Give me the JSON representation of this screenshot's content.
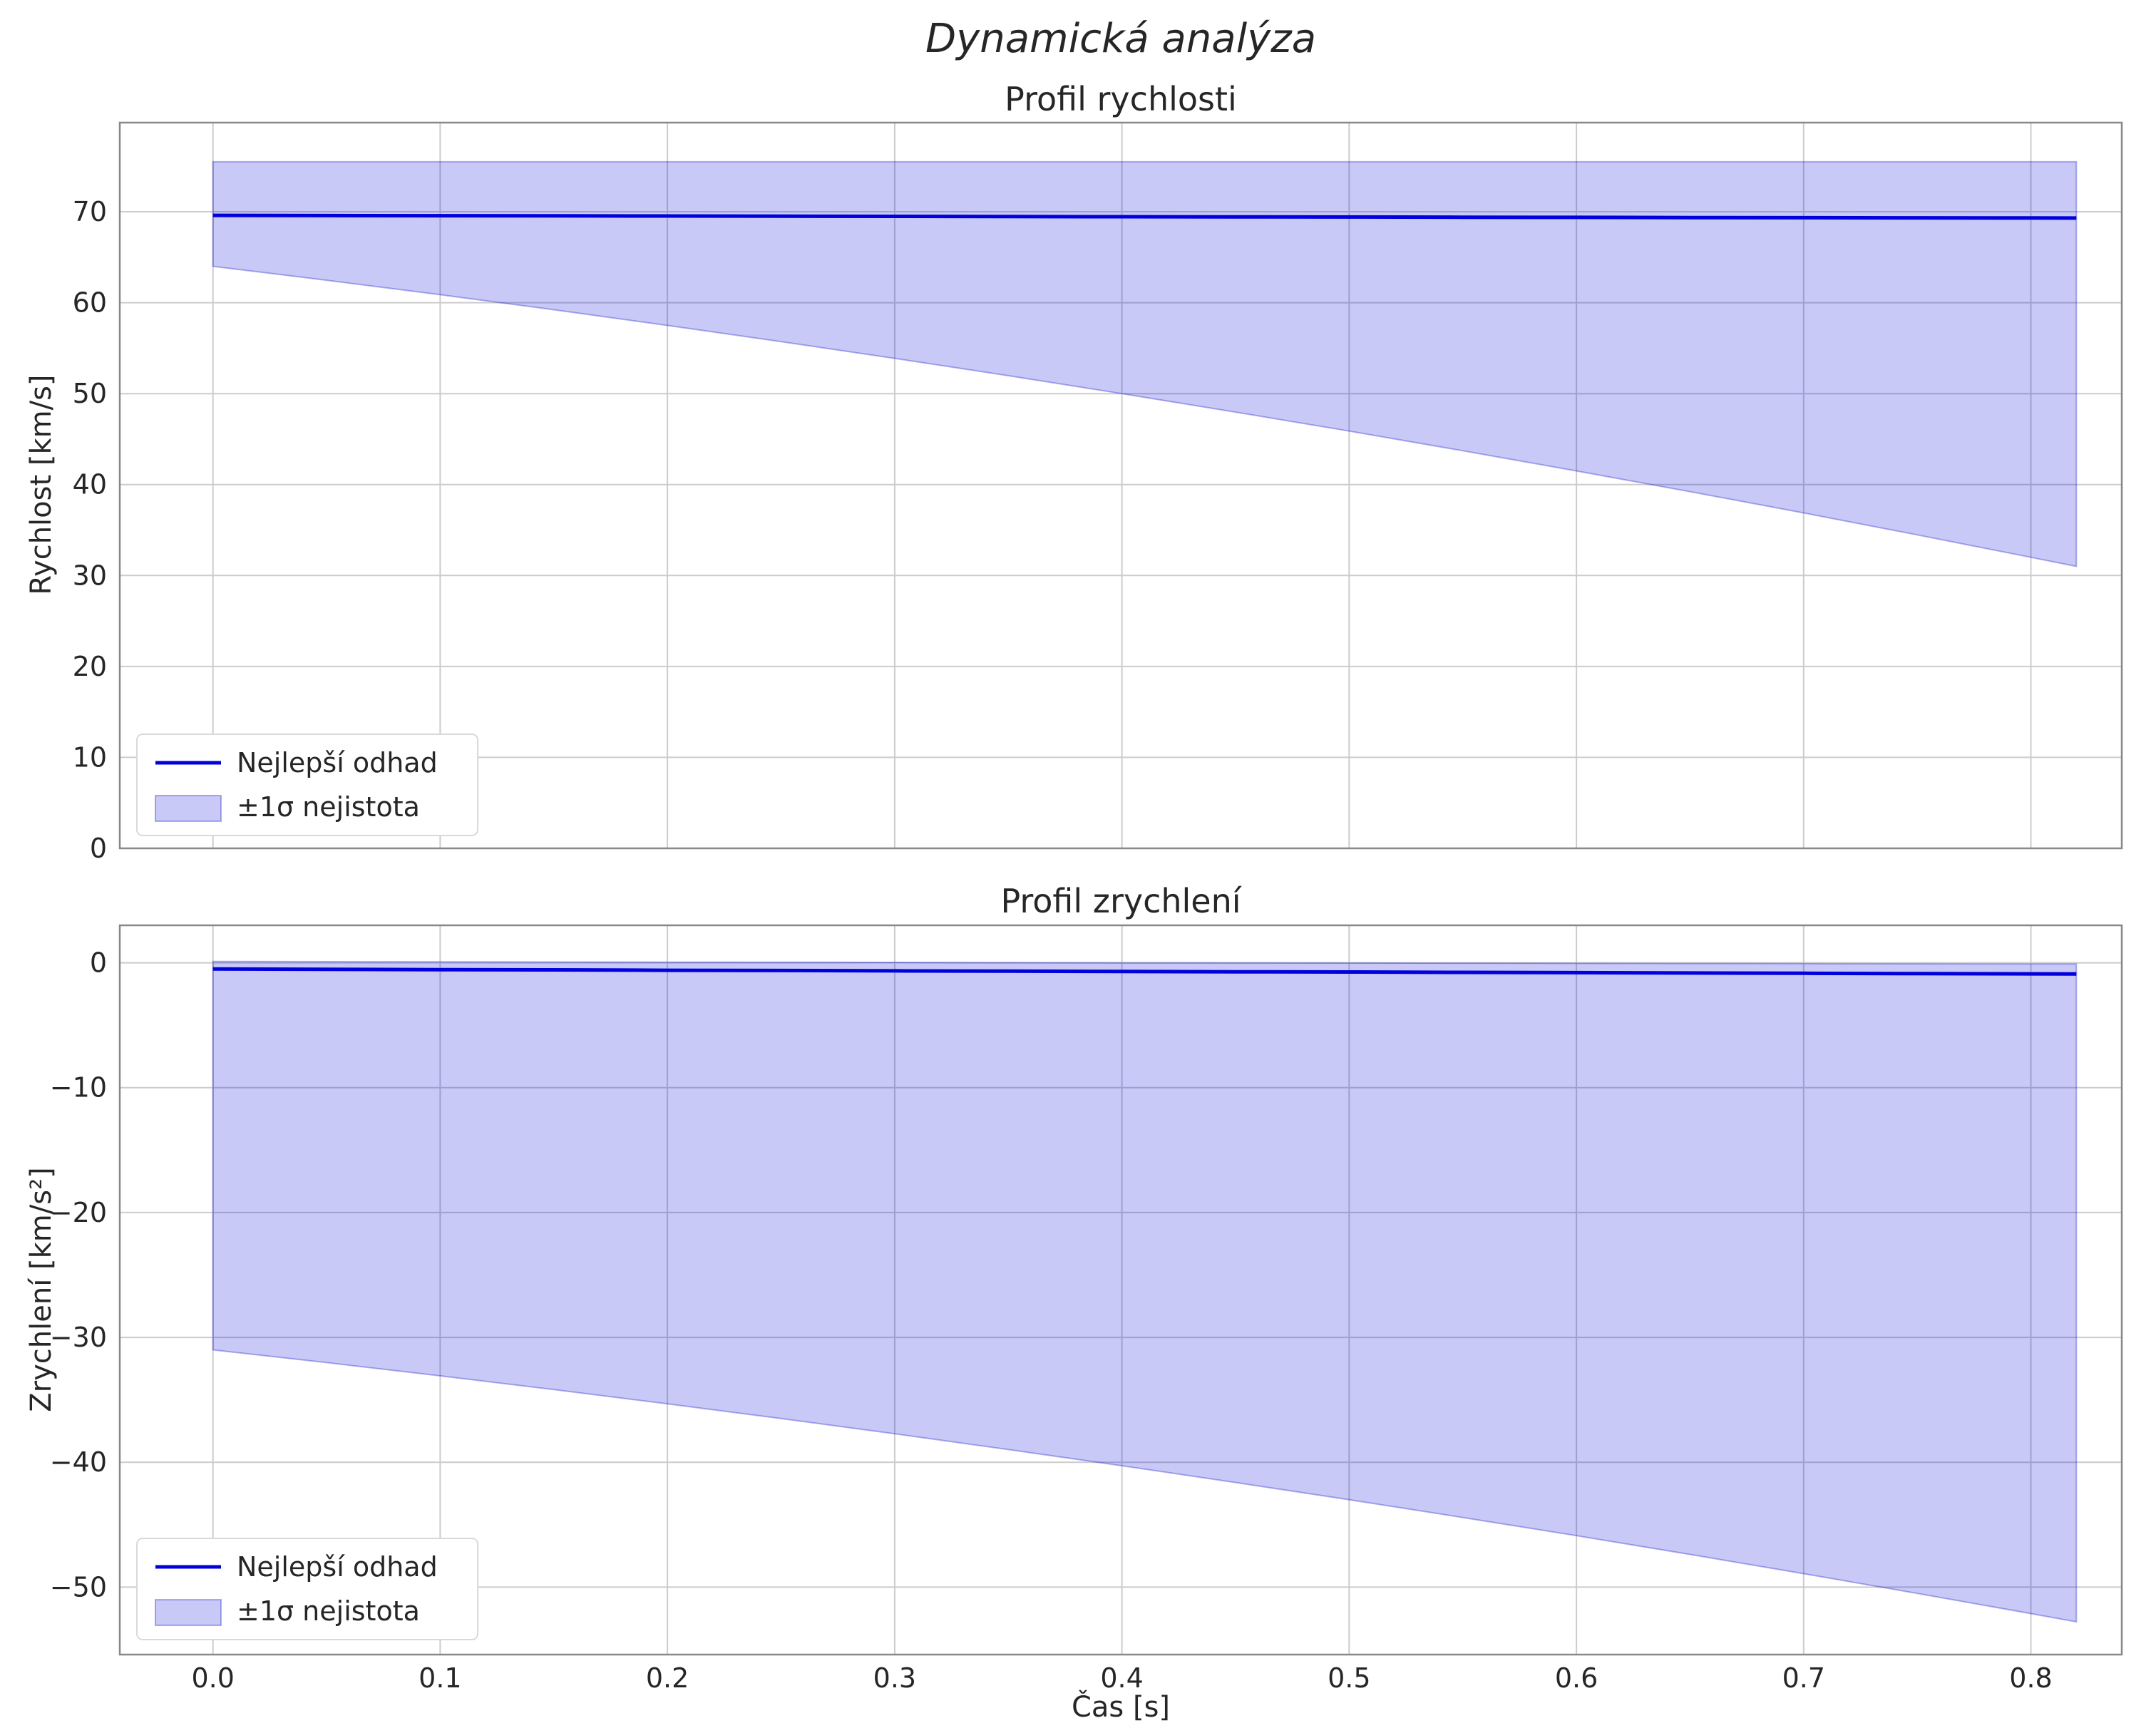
{
  "suptitle": "Dynamická analýza",
  "xlabel": "Čas [s]",
  "colors": {
    "line": "#0000dd",
    "band_fill": "rgba(0,0,221,0.21)",
    "band_edge": "rgba(0,0,190,0.30)",
    "grid": "#cccccc",
    "frame": "#888888",
    "text": "#262626"
  },
  "chart_data": [
    {
      "type": "area",
      "title": "Profil rychlosti",
      "ylabel": "Rychlost [km/s]",
      "xlim": [
        -0.041,
        0.84
      ],
      "ylim": [
        0,
        79.8
      ],
      "grid": true,
      "legend_position": "lower-left",
      "xticks": [
        0.0,
        0.1,
        0.2,
        0.3,
        0.4,
        0.5,
        0.6,
        0.7,
        0.8
      ],
      "xtick_labels": [
        "0.0",
        "0.1",
        "0.2",
        "0.3",
        "0.4",
        "0.5",
        "0.6",
        "0.7",
        "0.8"
      ],
      "yticks": [
        0,
        10,
        20,
        30,
        40,
        50,
        60,
        70
      ],
      "ytick_labels": [
        "0",
        "10",
        "20",
        "30",
        "40",
        "50",
        "60",
        "70"
      ],
      "x": [
        0,
        0.05,
        0.1,
        0.15,
        0.2,
        0.25,
        0.3,
        0.35,
        0.4,
        0.45,
        0.5,
        0.55,
        0.6,
        0.65,
        0.7,
        0.75,
        0.8,
        0.82
      ],
      "line": {
        "name": "Nejlepší odhad",
        "values": [
          69.6,
          69.58,
          69.56,
          69.55,
          69.53,
          69.51,
          69.49,
          69.47,
          69.45,
          69.44,
          69.42,
          69.4,
          69.38,
          69.36,
          69.34,
          69.33,
          69.31,
          69.3
        ]
      },
      "band": {
        "name": "±1σ nejistota",
        "upper": [
          75.5,
          75.5,
          75.5,
          75.5,
          75.5,
          75.5,
          75.5,
          75.5,
          75.5,
          75.5,
          75.5,
          75.5,
          75.5,
          75.5,
          75.5,
          75.5,
          75.5,
          75.5
        ],
        "lower": [
          64.0,
          62.47,
          60.88,
          59.22,
          57.5,
          55.72,
          53.88,
          51.97,
          50.0,
          47.97,
          45.88,
          43.72,
          41.5,
          39.22,
          36.88,
          34.47,
          32.0,
          31.0
        ]
      },
      "legend": {
        "entries": [
          {
            "label": "Nejlepší odhad",
            "marker": "line"
          },
          {
            "label": "±1σ nejistota",
            "marker": "patch"
          }
        ]
      }
    },
    {
      "type": "area",
      "title": "Profil zrychlení",
      "ylabel": "Zrychlení [km/s²]",
      "xlim": [
        -0.041,
        0.84
      ],
      "ylim": [
        -55.4,
        3.0
      ],
      "grid": true,
      "legend_position": "lower-left",
      "xticks": [
        0.0,
        0.1,
        0.2,
        0.3,
        0.4,
        0.5,
        0.6,
        0.7,
        0.8
      ],
      "xtick_labels": [
        "0.0",
        "0.1",
        "0.2",
        "0.3",
        "0.4",
        "0.5",
        "0.6",
        "0.7",
        "0.8"
      ],
      "yticks": [
        0,
        -10,
        -20,
        -30,
        -40,
        -50
      ],
      "ytick_labels": [
        "0",
        "−10",
        "−20",
        "−30",
        "−40",
        "−50"
      ],
      "x": [
        0,
        0.05,
        0.1,
        0.15,
        0.2,
        0.25,
        0.3,
        0.35,
        0.4,
        0.45,
        0.5,
        0.55,
        0.6,
        0.65,
        0.7,
        0.75,
        0.8,
        0.82
      ],
      "line": {
        "name": "Nejlepší odhad",
        "values": [
          -0.5,
          -0.52,
          -0.55,
          -0.57,
          -0.6,
          -0.62,
          -0.65,
          -0.67,
          -0.7,
          -0.72,
          -0.74,
          -0.77,
          -0.79,
          -0.82,
          -0.84,
          -0.87,
          -0.89,
          -0.9
        ]
      },
      "band": {
        "name": "±1σ nejistota",
        "upper": [
          0.1,
          0.09,
          0.08,
          0.06,
          0.05,
          0.04,
          0.03,
          0.01,
          0.0,
          -0.01,
          -0.02,
          -0.03,
          -0.05,
          -0.06,
          -0.07,
          -0.08,
          -0.1,
          -0.1
        ],
        "lower": [
          -31.0,
          -32.02,
          -33.08,
          -34.18,
          -35.32,
          -36.5,
          -37.72,
          -38.98,
          -40.28,
          -41.62,
          -43.0,
          -44.42,
          -45.88,
          -47.38,
          -48.92,
          -50.5,
          -52.12,
          -52.78
        ]
      },
      "legend": {
        "entries": [
          {
            "label": "Nejlepší odhad",
            "marker": "line"
          },
          {
            "label": "±1σ nejistota",
            "marker": "patch"
          }
        ]
      }
    }
  ]
}
